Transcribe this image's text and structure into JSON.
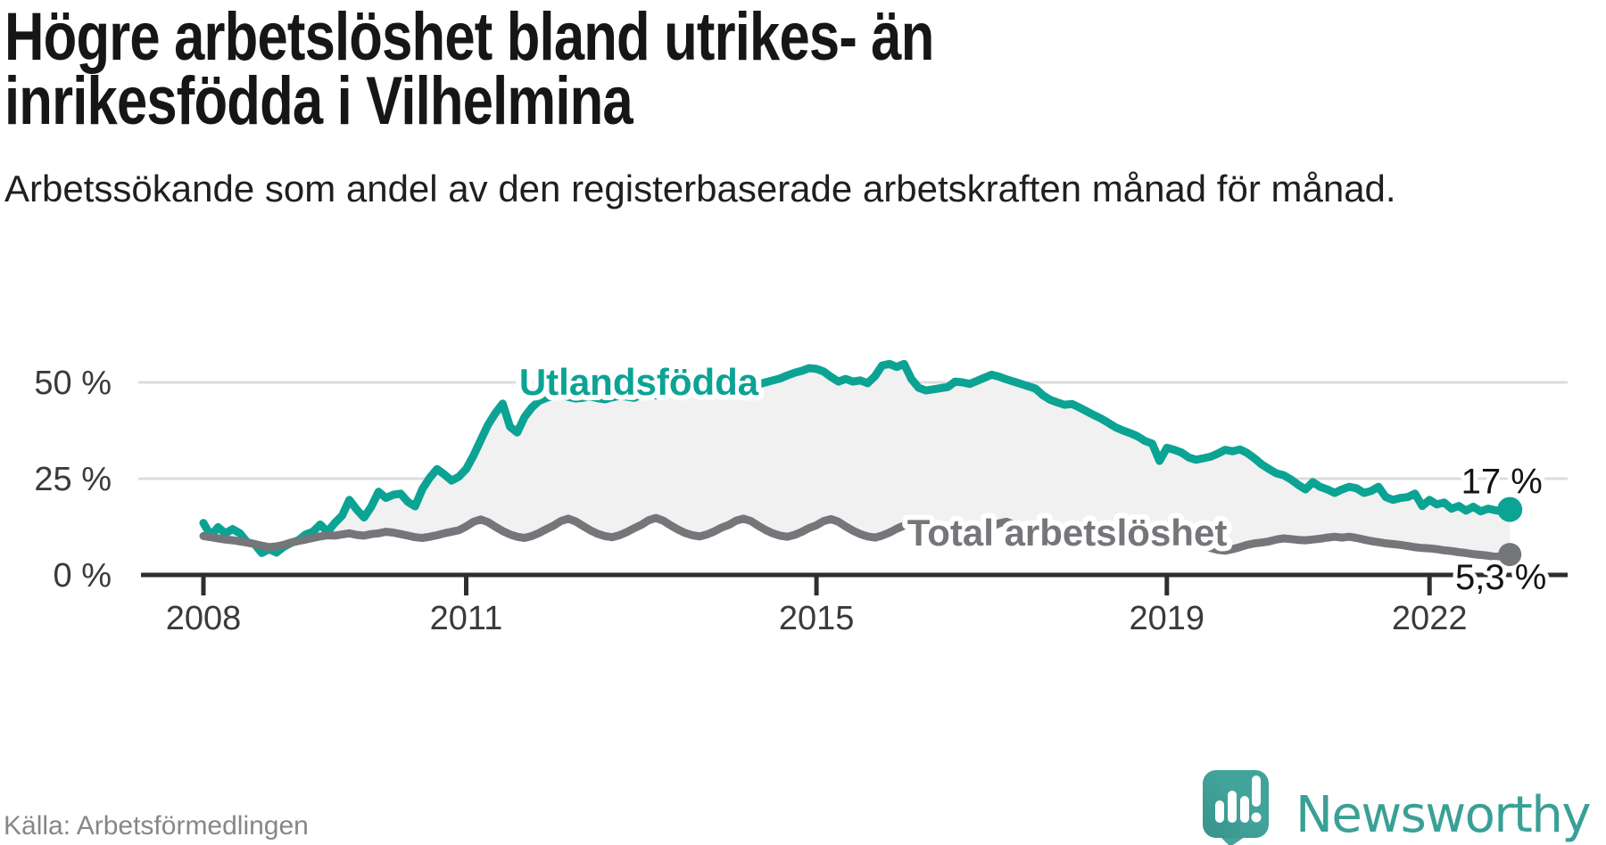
{
  "header": {
    "title": "Högre arbetslöshet bland utrikes- än inrikesfödda i Vilhelmina",
    "subtitle": "Arbetssökande som andel av den registerbaserade arbetskraften månad för månad."
  },
  "chart": {
    "y_ticks": [
      {
        "value": 50,
        "label": "50 %"
      },
      {
        "value": 25,
        "label": "25 %"
      },
      {
        "value": 0,
        "label": "0 %"
      }
    ],
    "x_ticks": [
      {
        "label": "2008",
        "month_index": 0
      },
      {
        "label": "2011",
        "month_index": 36
      },
      {
        "label": "2015",
        "month_index": 84
      },
      {
        "label": "2019",
        "month_index": 132
      },
      {
        "label": "2022",
        "month_index": 168
      }
    ],
    "series_labels": {
      "foreign_born": "Utlandsfödda",
      "total": "Total arbetslöshet"
    },
    "end_labels": {
      "foreign_born": "17 %",
      "total": "5,3 %"
    }
  },
  "chart_data": {
    "type": "line",
    "title": "Högre arbetslöshet bland utrikes- än inrikesfödda i Vilhelmina",
    "subtitle": "Arbetssökande som andel av den registerbaserade arbetskraften månad för månad.",
    "unit": "percent",
    "frequency": "monthly",
    "x_start": "2008-01",
    "x_end": "2022-12",
    "xlabel": "",
    "ylabel": "",
    "ylim": [
      0,
      57
    ],
    "grid": "horizontal",
    "legend_position": "inline-labels",
    "area_fill_between_series": "#f1f1f1",
    "series": [
      {
        "name": "Utlandsfödda",
        "color": "#0ba394",
        "end_value_label": "17 %",
        "values": [
          13.5,
          10.2,
          12.4,
          10.8,
          11.9,
          10.8,
          8.5,
          8.0,
          5.7,
          6.7,
          5.8,
          7.3,
          8.3,
          9.0,
          10.5,
          11.2,
          13.1,
          11.2,
          13.5,
          15.4,
          19.5,
          17.0,
          14.9,
          17.7,
          21.6,
          20.0,
          20.8,
          21.1,
          19.0,
          17.8,
          22.3,
          25.2,
          27.5,
          26.1,
          24.5,
          25.5,
          27.5,
          31.0,
          35.0,
          39.0,
          42.0,
          44.5,
          38.5,
          37.0,
          41.0,
          43.5,
          45.2,
          46.0,
          46.5,
          46.8,
          46.2,
          45.8,
          46.0,
          46.4,
          45.9,
          45.6,
          46.1,
          46.5,
          46.3,
          46.0,
          46.8,
          47.0,
          46.6,
          46.9,
          47.3,
          47.0,
          47.4,
          47.8,
          47.5,
          47.9,
          48.2,
          48.0,
          48.5,
          48.8,
          49.2,
          49.0,
          49.5,
          50.0,
          50.5,
          51.0,
          51.8,
          52.5,
          53.0,
          53.7,
          53.5,
          52.8,
          51.4,
          50.2,
          50.9,
          50.2,
          50.5,
          49.8,
          51.6,
          54.4,
          54.8,
          54.0,
          54.8,
          50.9,
          48.6,
          47.9,
          48.2,
          48.5,
          48.8,
          50.2,
          50.0,
          49.6,
          50.4,
          51.2,
          52.0,
          51.5,
          50.8,
          50.2,
          49.6,
          49.0,
          48.4,
          46.7,
          45.5,
          44.8,
          44.2,
          44.4,
          43.5,
          42.5,
          41.5,
          40.6,
          39.5,
          38.3,
          37.5,
          36.8,
          36.0,
          34.8,
          34.1,
          29.6,
          33.0,
          32.5,
          31.8,
          30.5,
          29.9,
          30.3,
          30.7,
          31.5,
          32.5,
          32.1,
          32.6,
          31.7,
          30.3,
          28.7,
          27.5,
          26.4,
          25.9,
          24.8,
          23.4,
          22.2,
          24.1,
          22.9,
          22.2,
          21.3,
          22.2,
          22.9,
          22.5,
          21.3,
          21.8,
          22.9,
          20.2,
          19.5,
          20.0,
          20.2,
          21.1,
          17.9,
          19.5,
          18.3,
          18.8,
          17.2,
          17.9,
          16.7,
          17.7,
          16.5,
          17.2,
          16.8,
          16.5,
          17.0
        ]
      },
      {
        "name": "Total arbetslöshet",
        "color": "#75767a",
        "end_value_label": "5,3 %",
        "values": [
          10.1,
          9.8,
          9.5,
          9.2,
          9.0,
          8.7,
          8.4,
          8.0,
          7.6,
          7.2,
          7.4,
          7.8,
          8.4,
          8.8,
          9.2,
          9.6,
          10.0,
          10.3,
          10.2,
          10.5,
          10.8,
          10.4,
          10.2,
          10.6,
          10.8,
          11.2,
          11.0,
          10.6,
          10.2,
          9.8,
          9.6,
          9.9,
          10.3,
          10.8,
          11.2,
          11.6,
          12.6,
          13.8,
          14.4,
          13.7,
          12.5,
          11.4,
          10.5,
          9.9,
          9.6,
          10.1,
          10.9,
          11.9,
          12.8,
          14.0,
          14.6,
          13.9,
          12.7,
          11.6,
          10.7,
          10.1,
          9.8,
          10.3,
          11.1,
          12.1,
          13.0,
          14.2,
          14.8,
          14.1,
          12.9,
          11.8,
          10.9,
          10.3,
          10.0,
          10.5,
          11.3,
          12.3,
          13.0,
          14.1,
          14.6,
          14.0,
          12.8,
          11.7,
          10.8,
          10.2,
          9.9,
          10.4,
          11.2,
          12.2,
          12.9,
          14.0,
          14.5,
          13.8,
          12.6,
          11.5,
          10.6,
          10.0,
          9.7,
          10.2,
          11.0,
          12.0,
          12.8,
          13.9,
          14.4,
          13.7,
          12.5,
          11.4,
          10.5,
          9.9,
          9.6,
          10.1,
          10.9,
          11.9,
          12.5,
          13.4,
          13.8,
          13.1,
          12.0,
          10.9,
          10.0,
          9.4,
          9.1,
          9.6,
          10.3,
          11.2,
          11.8,
          12.5,
          12.8,
          12.1,
          11.0,
          10.0,
          9.2,
          8.6,
          8.3,
          8.7,
          9.3,
          10.0,
          9.8,
          10.3,
          10.5,
          9.8,
          8.8,
          7.8,
          7.0,
          6.5,
          6.3,
          6.7,
          7.2,
          7.8,
          8.2,
          8.4,
          8.7,
          9.2,
          9.5,
          9.3,
          9.1,
          9.0,
          9.2,
          9.4,
          9.7,
          9.9,
          9.7,
          9.9,
          9.6,
          9.2,
          8.8,
          8.5,
          8.2,
          8.0,
          7.8,
          7.5,
          7.2,
          7.0,
          6.9,
          6.7,
          6.4,
          6.2,
          5.9,
          5.7,
          5.4,
          5.2,
          5.0,
          4.7,
          4.9,
          5.3
        ]
      }
    ]
  },
  "footer": {
    "source": "Källa: Arbetsförmedlingen",
    "brand": "Newsworthy"
  },
  "colors": {
    "accent_teal": "#0ba394",
    "neutral_gray": "#75767a",
    "area_fill": "#f1f1f1",
    "gridline": "#dcdcdc",
    "axis": "#2e2e2e",
    "logo_teal": "#42a39b",
    "brand_text_teal": "#3aa096"
  }
}
